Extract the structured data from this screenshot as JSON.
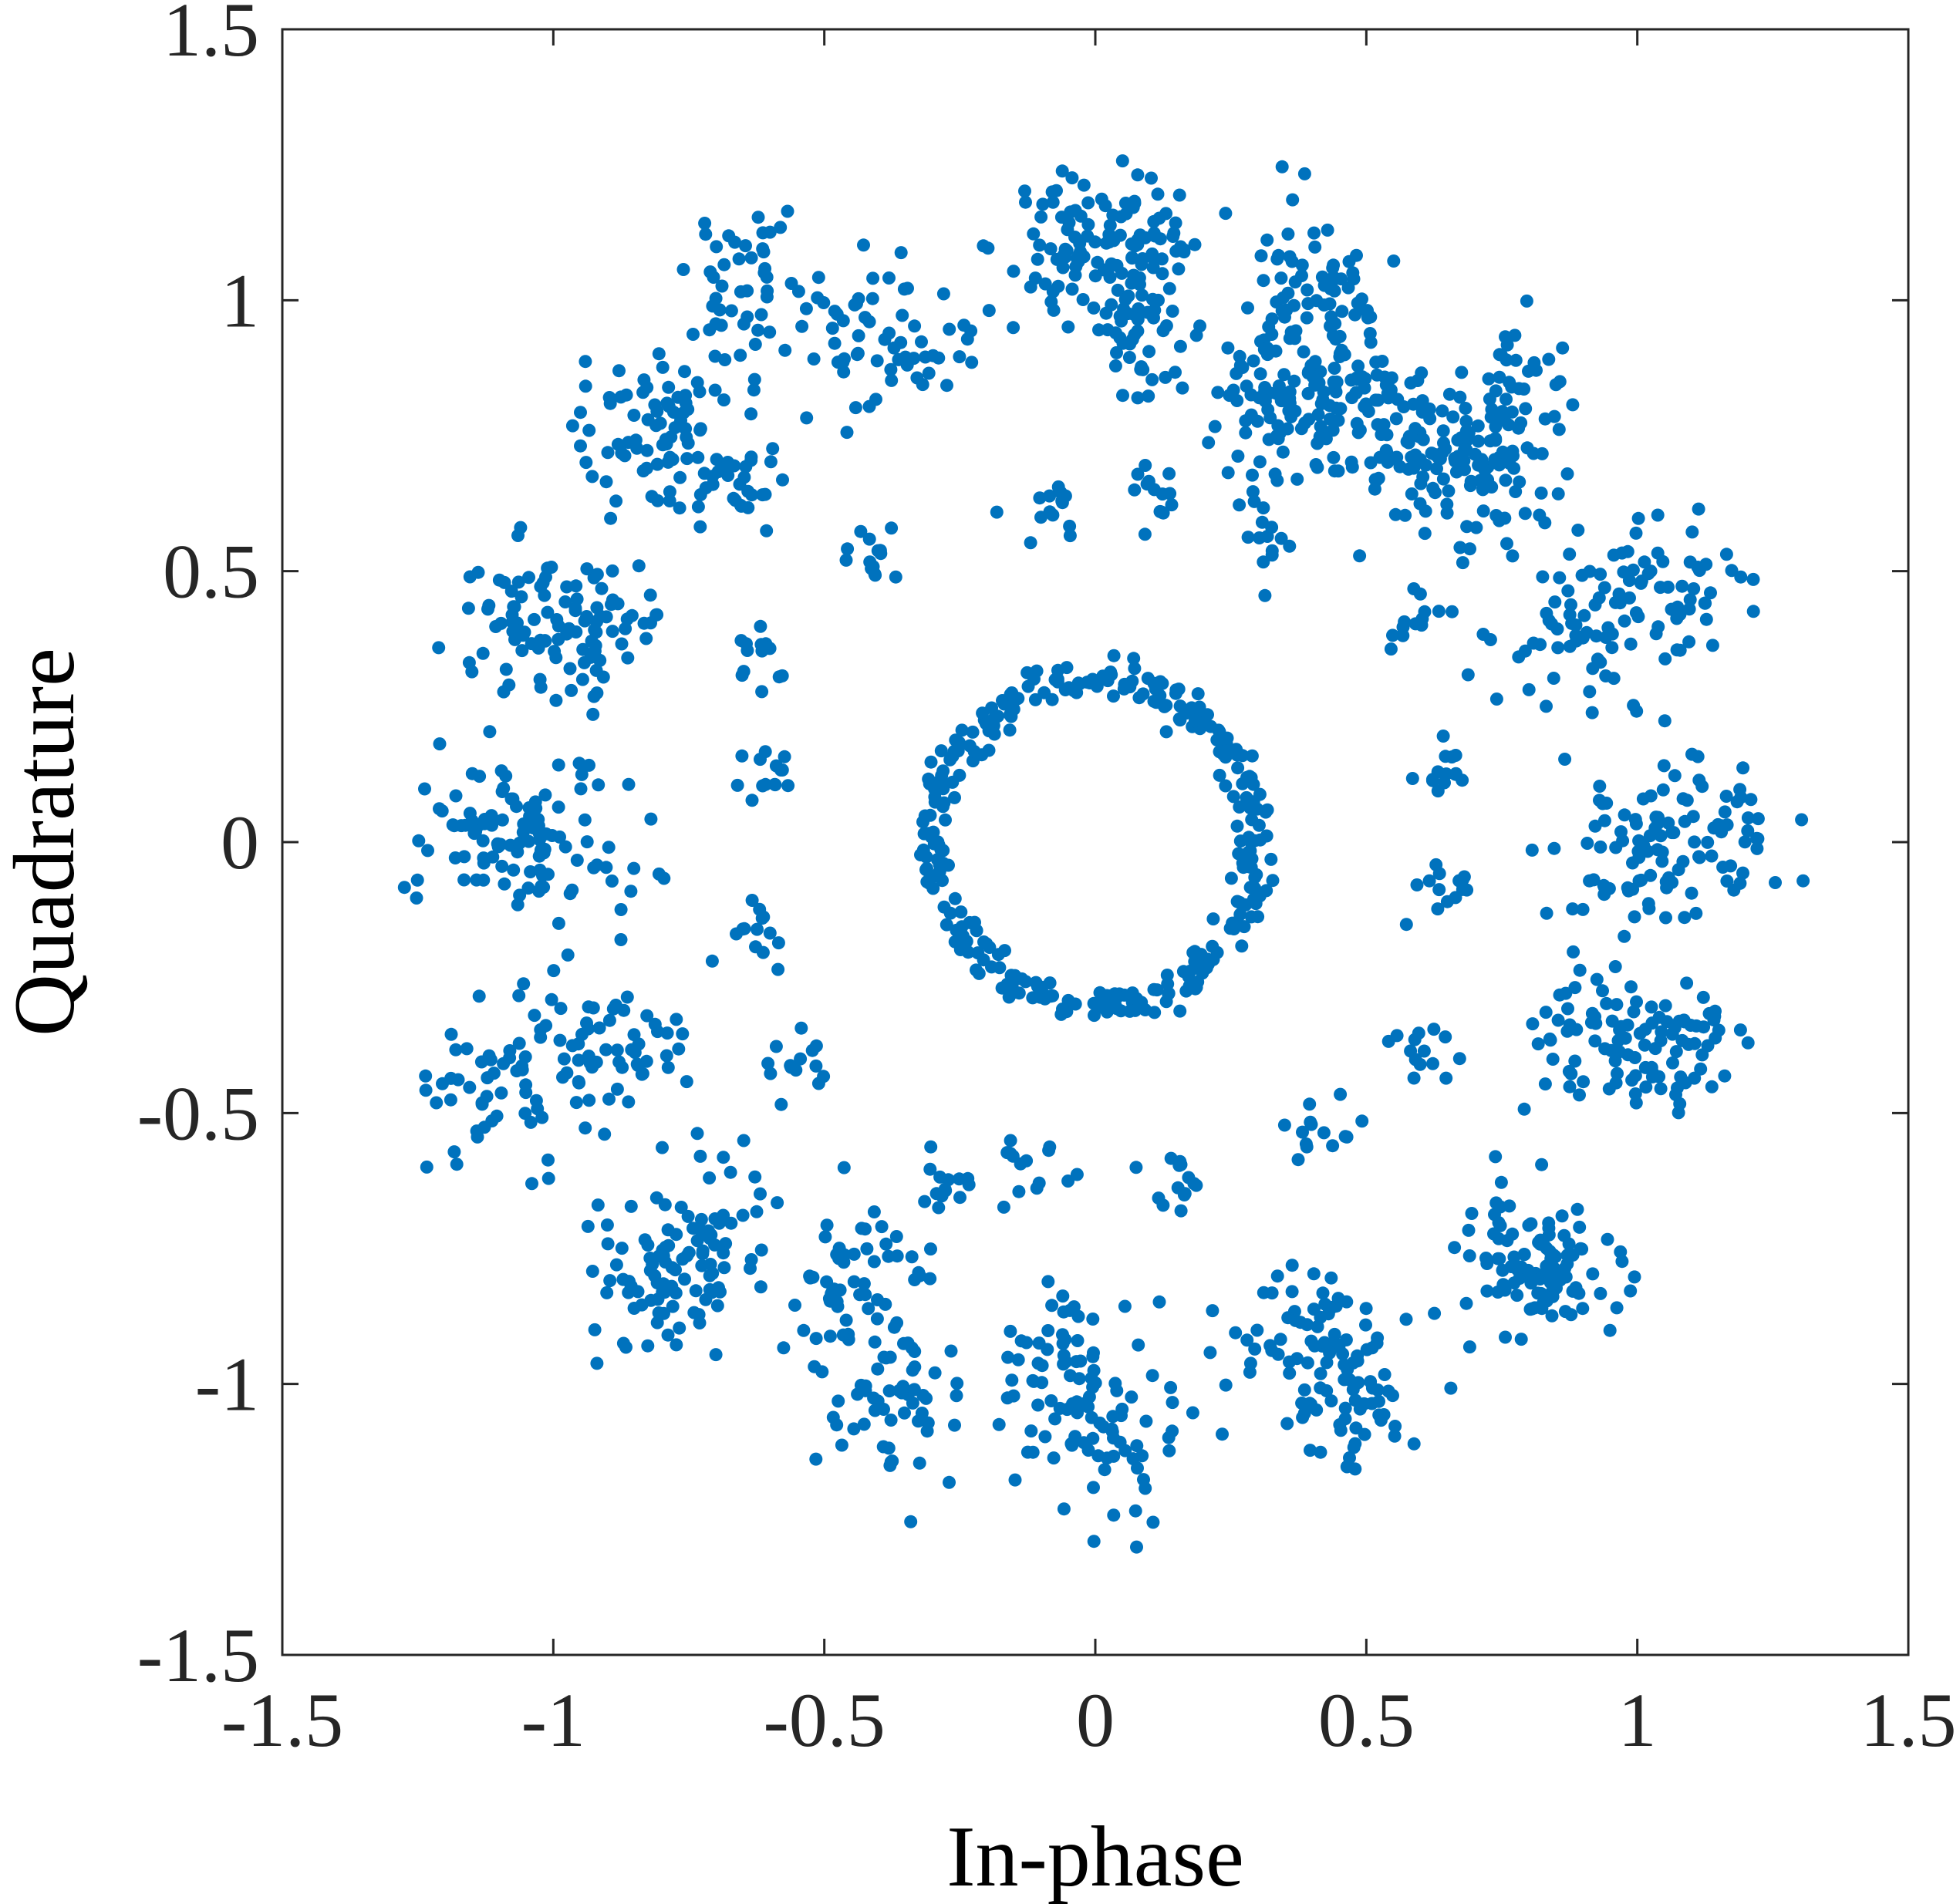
{
  "chart_data": {
    "type": "scatter",
    "title": "",
    "xlabel": "In-phase",
    "ylabel": "Quadrature",
    "xlim": [
      -1.5,
      1.5
    ],
    "ylim": [
      -1.5,
      1.5
    ],
    "xticks": [
      -1.5,
      -1,
      -0.5,
      0,
      0.5,
      1,
      1.5
    ],
    "yticks": [
      -1.5,
      -1,
      -0.5,
      0,
      0.5,
      1,
      1.5
    ],
    "xtick_labels": [
      "-1.5",
      "-1",
      "-0.5",
      "0",
      "0.5",
      "1",
      "1.5"
    ],
    "ytick_labels": [
      "-1.5",
      "-1",
      "-0.5",
      "0",
      "0.5",
      "1",
      "1.5"
    ],
    "grid": false,
    "legend": "none",
    "marker_color": "#0072BD",
    "series": [
      {
        "description": "inner ring",
        "points": [
          [
            0.3,
            0.0
          ],
          [
            0.29,
            0.08
          ],
          [
            0.26,
            0.15
          ],
          [
            0.21,
            0.21
          ],
          [
            0.15,
            0.26
          ],
          [
            0.08,
            0.29
          ],
          [
            0.0,
            0.3
          ],
          [
            -0.08,
            0.29
          ],
          [
            -0.15,
            0.26
          ],
          [
            -0.21,
            0.21
          ],
          [
            -0.26,
            0.15
          ],
          [
            -0.29,
            0.08
          ],
          [
            -0.3,
            0.0
          ],
          [
            -0.29,
            -0.08
          ],
          [
            -0.26,
            -0.15
          ],
          [
            -0.21,
            -0.21
          ],
          [
            -0.15,
            -0.26
          ],
          [
            -0.08,
            -0.29
          ],
          [
            0.0,
            -0.3
          ],
          [
            0.08,
            -0.29
          ],
          [
            0.15,
            -0.26
          ],
          [
            0.21,
            -0.21
          ],
          [
            0.26,
            -0.15
          ],
          [
            0.29,
            -0.08
          ]
        ]
      },
      {
        "description": "outer clusters",
        "points": [
          [
            -0.03,
            1.12
          ],
          [
            0.07,
            1.1
          ],
          [
            0.42,
            1.05
          ],
          [
            0.07,
            0.95
          ],
          [
            0.41,
            0.86
          ],
          [
            -0.08,
            0.61
          ],
          [
            0.1,
            0.64
          ],
          [
            0.32,
            0.57
          ],
          [
            -0.63,
            1.03
          ],
          [
            -0.84,
            0.76
          ],
          [
            -0.35,
            0.93
          ],
          [
            -0.69,
            0.71
          ],
          [
            -0.41,
            0.55
          ],
          [
            -1.05,
            0.4
          ],
          [
            -0.92,
            0.4
          ],
          [
            -1.12,
            0.01
          ],
          [
            -1.0,
            -0.02
          ],
          [
            -0.61,
            0.12
          ],
          [
            -0.62,
            0.33
          ],
          [
            -1.08,
            -0.44
          ],
          [
            -0.9,
            -0.38
          ],
          [
            -0.62,
            -0.16
          ],
          [
            -0.55,
            -0.4
          ],
          [
            -0.72,
            -0.72
          ],
          [
            -0.8,
            -0.82
          ],
          [
            -0.44,
            -0.82
          ],
          [
            -0.38,
            -1.04
          ],
          [
            -0.28,
            -0.62
          ],
          [
            -0.12,
            -0.6
          ],
          [
            -0.05,
            -0.95
          ],
          [
            0.02,
            -1.12
          ],
          [
            0.15,
            -0.62
          ],
          [
            0.4,
            -0.91
          ],
          [
            0.47,
            -1.03
          ],
          [
            0.41,
            -0.53
          ],
          [
            0.78,
            -0.76
          ],
          [
            0.85,
            -0.8
          ],
          [
            0.59,
            -0.38
          ],
          [
            0.93,
            -0.38
          ],
          [
            1.08,
            -0.38
          ],
          [
            0.64,
            -0.09
          ],
          [
            1.12,
            0.01
          ],
          [
            0.98,
            -0.04
          ],
          [
            0.62,
            0.15
          ],
          [
            0.9,
            0.38
          ],
          [
            1.05,
            0.47
          ],
          [
            0.58,
            0.41
          ],
          [
            0.76,
            0.8
          ],
          [
            0.74,
            0.67
          ],
          [
            0.5,
            0.82
          ],
          [
            0.3,
            0.8
          ],
          [
            0.58,
            0.7
          ]
        ]
      }
    ]
  }
}
